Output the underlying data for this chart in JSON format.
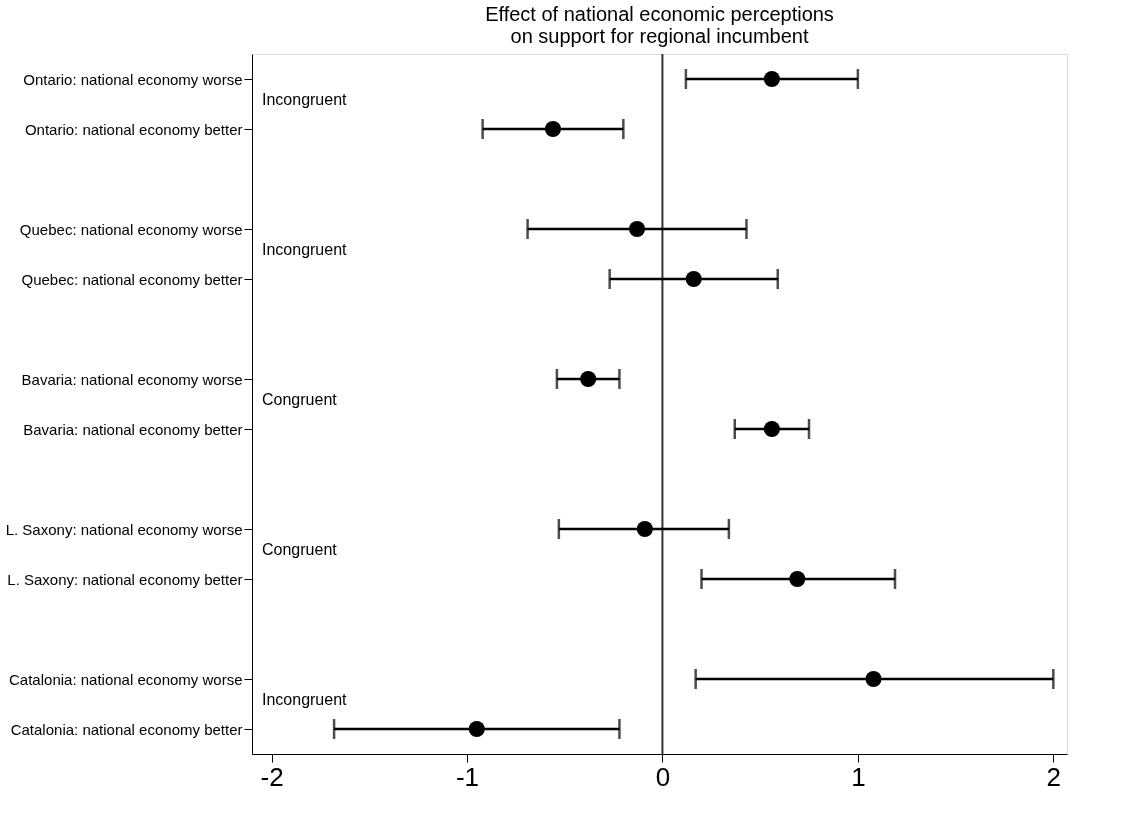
{
  "chart_data": {
    "type": "scatter",
    "orientation": "horizontal",
    "title": "Effect of national economic perceptions\non support for regional incumbent",
    "categories": [
      "Ontario: national economy worse",
      "Ontario: national economy better",
      null,
      "Quebec: national economy worse",
      "Quebec: national economy better",
      null,
      "Bavaria: national economy worse",
      "Bavaria: national economy better",
      null,
      "L. Saxony: national economy worse",
      "L. Saxony: national economy better",
      null,
      "Catalonia: national economy worse",
      "Catalonia: national economy better"
    ],
    "series": [
      {
        "color": "#000000",
        "values": [
          0.56,
          -0.56,
          null,
          -0.13,
          0.16,
          null,
          -0.38,
          0.56,
          null,
          -0.09,
          0.69,
          null,
          1.08,
          -0.95
        ],
        "errors": [
          [
            0.12,
            1.0
          ],
          [
            -0.92,
            -0.2
          ],
          null,
          [
            -0.69,
            0.43
          ],
          [
            -0.27,
            0.59
          ],
          null,
          [
            -0.54,
            -0.22
          ],
          [
            0.37,
            0.75
          ],
          null,
          [
            -0.53,
            0.34
          ],
          [
            0.2,
            1.19
          ],
          null,
          [
            0.17,
            2.0
          ],
          [
            -1.68,
            -0.22
          ]
        ]
      }
    ],
    "xlim": [
      -2.1,
      2.07
    ],
    "xticks": [
      -2,
      -1,
      0,
      1,
      2
    ],
    "ref_lines": [
      {
        "axis": "x",
        "value": 0,
        "color": "#333333"
      }
    ],
    "annotations": [
      "Incongruent",
      "Incongruent",
      "Congruent",
      "Congruent",
      "Incongruent"
    ],
    "marker": "circle",
    "grid": false,
    "legend": false
  }
}
